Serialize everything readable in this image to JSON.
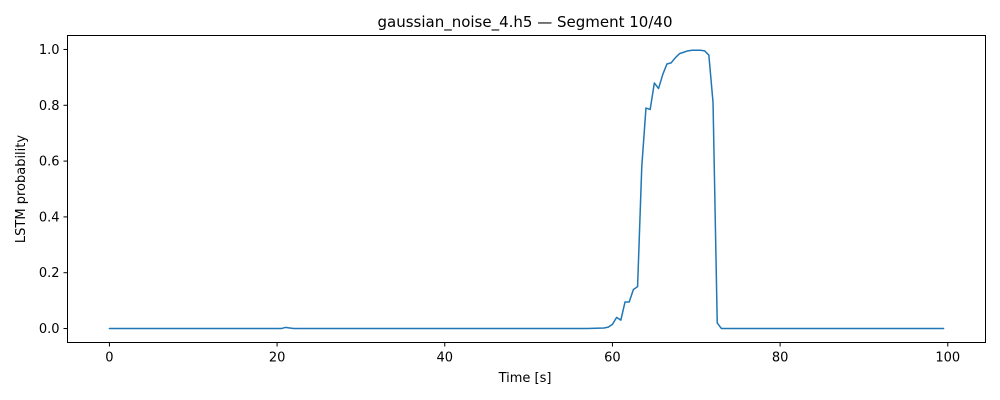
{
  "chart_data": {
    "type": "line",
    "title": "gaussian_noise_4.h5 — Segment 10/40",
    "xlabel": "Time [s]",
    "ylabel": "LSTM probability",
    "xlim": [
      -5,
      104.5
    ],
    "ylim": [
      -0.05,
      1.05
    ],
    "xticks": [
      0,
      20,
      40,
      60,
      80,
      100
    ],
    "xtick_labels": [
      "0",
      "20",
      "40",
      "60",
      "80",
      "100"
    ],
    "yticks": [
      0.0,
      0.2,
      0.4,
      0.6,
      0.8,
      1.0
    ],
    "ytick_labels": [
      "0.0",
      "0.2",
      "0.4",
      "0.6",
      "0.8",
      "1.0"
    ],
    "grid": false,
    "series": [
      {
        "color": "#1f77b4",
        "x": [
          0,
          5,
          10,
          15,
          20,
          20.5,
          21,
          21.5,
          22,
          25,
          30,
          35,
          40,
          45,
          50,
          55,
          57,
          58,
          59,
          59.5,
          60,
          60.5,
          61,
          61.5,
          62,
          62.5,
          63,
          63.5,
          64,
          64.5,
          65,
          65.5,
          66,
          66.5,
          67,
          67.5,
          68,
          68.5,
          69,
          69.5,
          70,
          70.5,
          71,
          71.5,
          72,
          72.5,
          73,
          73.5,
          75,
          80,
          85,
          90,
          95,
          99.5
        ],
        "y": [
          0.0,
          0.0,
          0.0,
          0.0,
          0.0,
          0.0,
          0.004,
          0.002,
          0.0,
          0.0,
          0.0,
          0.0,
          0.0,
          0.0,
          0.0,
          0.0,
          0.0,
          0.001,
          0.002,
          0.005,
          0.015,
          0.04,
          0.03,
          0.095,
          0.095,
          0.14,
          0.15,
          0.58,
          0.79,
          0.785,
          0.88,
          0.86,
          0.91,
          0.948,
          0.952,
          0.97,
          0.985,
          0.99,
          0.995,
          0.997,
          0.997,
          0.997,
          0.995,
          0.98,
          0.81,
          0.02,
          0.0,
          0.0,
          0.0,
          0.0,
          0.0,
          0.0,
          0.0,
          0.0
        ]
      }
    ]
  }
}
